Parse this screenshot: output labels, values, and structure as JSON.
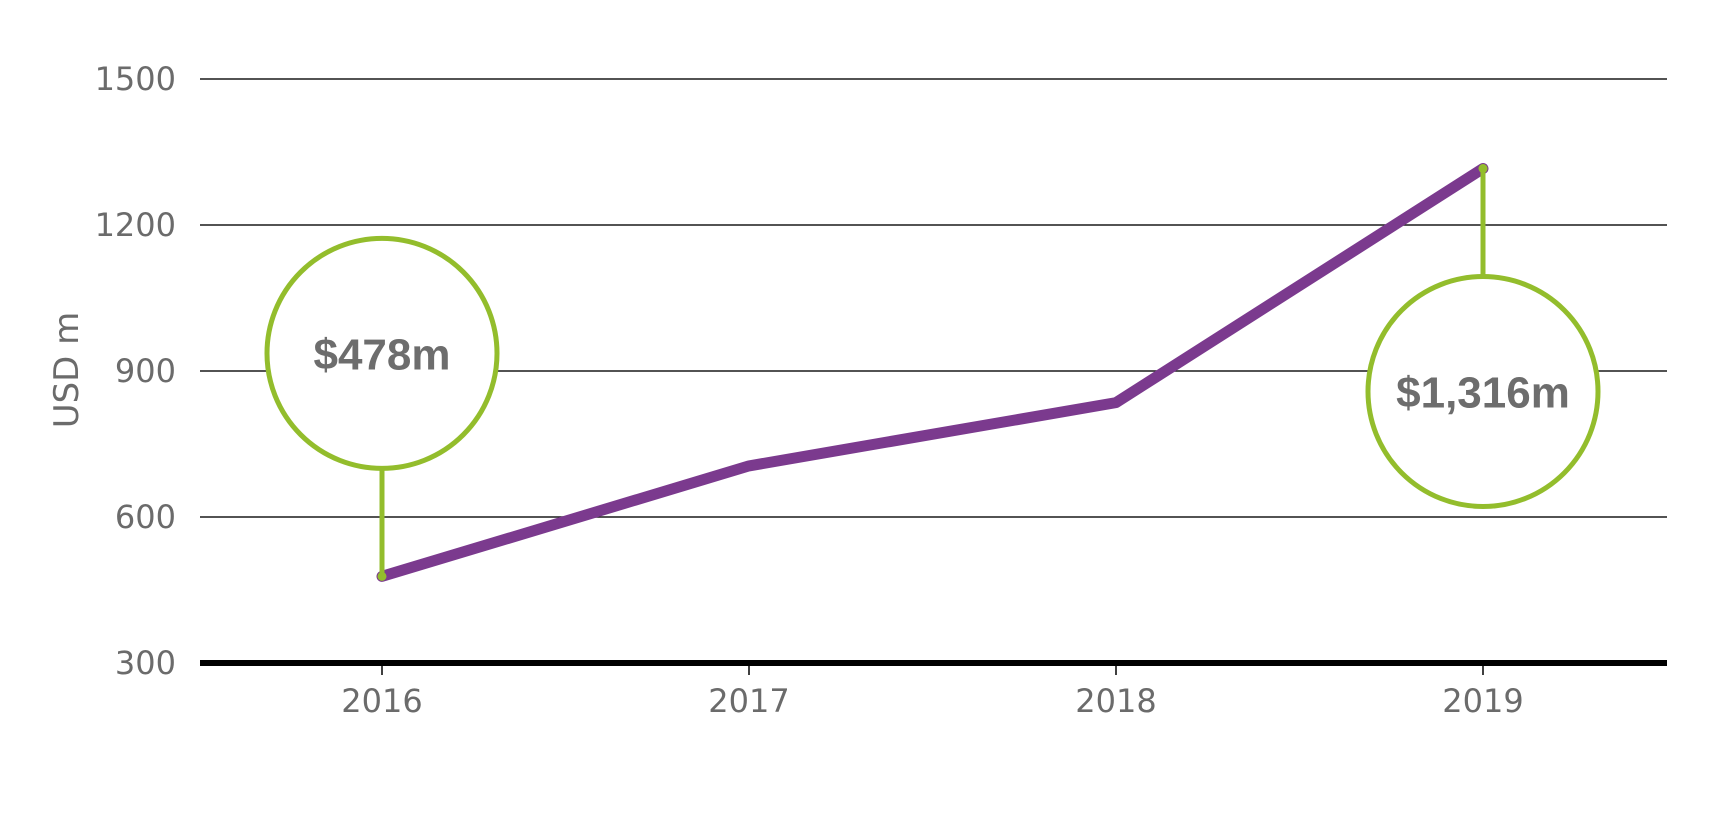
{
  "chart_data": {
    "type": "line",
    "ylabel": "USD m",
    "xlabel": "",
    "title": "",
    "categories": [
      "2016",
      "2017",
      "2018",
      "2019"
    ],
    "values": [
      478,
      705,
      835,
      1316
    ],
    "ylim": [
      300,
      1500
    ],
    "yticks": [
      300,
      600,
      900,
      1200,
      1500
    ],
    "grid": true,
    "annotations": [
      {
        "category": "2016",
        "value": 478,
        "label": "$478m",
        "placement": "above"
      },
      {
        "category": "2019",
        "value": 1316,
        "label": "$1,316m",
        "placement": "below"
      }
    ],
    "colors": {
      "line": "#7b3a8e",
      "callout": "#93bd2c",
      "text": "#6b6b6b"
    }
  }
}
